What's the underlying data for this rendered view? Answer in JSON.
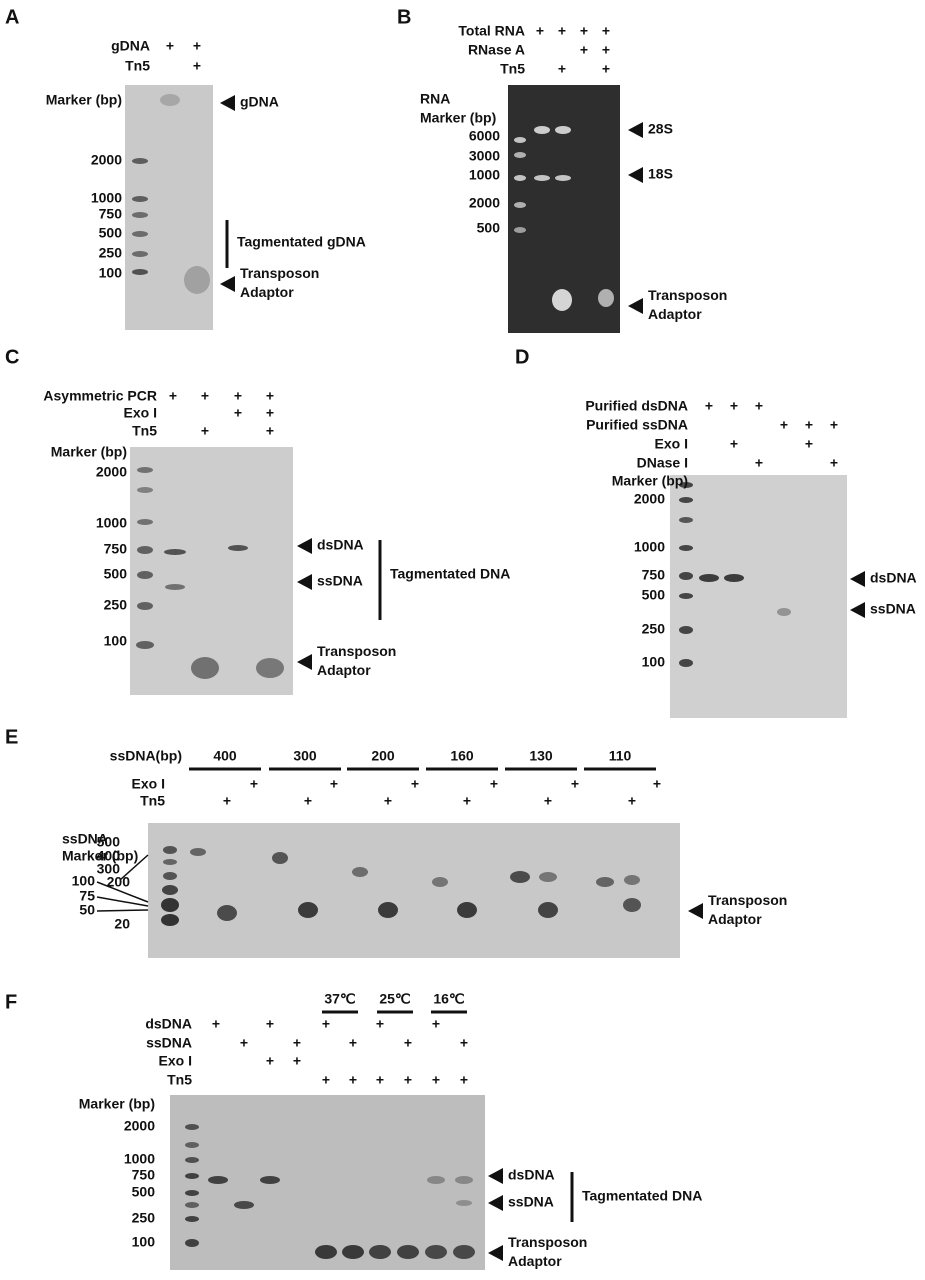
{
  "panels": [
    {
      "letter": "A",
      "rows": [
        {
          "label": "gDNA",
          "marks": [
            "+",
            "+"
          ]
        },
        {
          "label": "Tn5",
          "marks": [
            null,
            "+"
          ]
        }
      ],
      "marker_label": [
        "Marker (bp)"
      ],
      "marker_ticks": [
        "2000",
        "1000",
        "750",
        "500",
        "250",
        "100"
      ],
      "annotations": [
        {
          "text": [
            "gDNA"
          ]
        },
        {
          "text": [
            "Tagmentated gDNA"
          ]
        },
        {
          "text": [
            "Transposon",
            "Adaptor"
          ]
        }
      ]
    },
    {
      "letter": "B",
      "rows": [
        {
          "label": "Total RNA",
          "marks": [
            "+",
            "+",
            "+",
            "+"
          ]
        },
        {
          "label": "RNase A",
          "marks": [
            null,
            null,
            "+",
            "+"
          ]
        },
        {
          "label": "Tn5",
          "marks": [
            null,
            "+",
            null,
            "+"
          ]
        }
      ],
      "marker_label": [
        "RNA",
        "Marker (bp)"
      ],
      "marker_ticks": [
        "6000",
        "3000",
        "1000",
        "2000",
        "500"
      ],
      "annotations": [
        {
          "text": [
            "28S"
          ]
        },
        {
          "text": [
            "18S"
          ]
        },
        {
          "text": [
            "Transposon",
            "Adaptor"
          ]
        }
      ]
    },
    {
      "letter": "C",
      "rows": [
        {
          "label": "Asymmetric PCR",
          "marks": [
            "+",
            "+",
            "+",
            "+"
          ]
        },
        {
          "label": "Exo I",
          "marks": [
            null,
            null,
            "+",
            "+"
          ]
        },
        {
          "label": "Tn5",
          "marks": [
            null,
            "+",
            null,
            "+"
          ]
        }
      ],
      "marker_label": [
        "Marker (bp)"
      ],
      "marker_ticks": [
        "2000",
        "1000",
        "750",
        "500",
        "250",
        "100"
      ],
      "annotations": [
        {
          "text": [
            "dsDNA"
          ]
        },
        {
          "text": [
            "ssDNA"
          ]
        },
        {
          "text": [
            "Tagmentated DNA"
          ]
        },
        {
          "text": [
            "Transposon",
            "Adaptor"
          ]
        }
      ]
    },
    {
      "letter": "D",
      "rows": [
        {
          "label": "Purified dsDNA",
          "marks": [
            "+",
            "+",
            "+",
            null,
            null,
            null
          ]
        },
        {
          "label": "Purified ssDNA",
          "marks": [
            null,
            null,
            null,
            "+",
            "+",
            "+"
          ]
        },
        {
          "label": "Exo I",
          "marks": [
            null,
            "+",
            null,
            null,
            "+",
            null
          ]
        },
        {
          "label": "DNase I",
          "marks": [
            null,
            null,
            "+",
            null,
            null,
            "+"
          ]
        }
      ],
      "marker_label": [
        "Marker (bp)"
      ],
      "marker_ticks": [
        "2000",
        "1000",
        "750",
        "500",
        "250",
        "100"
      ],
      "annotations": [
        {
          "text": [
            "dsDNA"
          ]
        },
        {
          "text": [
            "ssDNA"
          ]
        }
      ]
    },
    {
      "letter": "E",
      "group_label": "ssDNA(bp)",
      "groups": [
        "400",
        "300",
        "200",
        "160",
        "130",
        "110"
      ],
      "rows": [
        {
          "label": "Exo I",
          "marks": [
            null,
            null,
            "+",
            null,
            null,
            "+",
            null,
            null,
            "+",
            null,
            null,
            "+",
            null,
            null,
            "+",
            null,
            null,
            "+"
          ]
        },
        {
          "label": "Tn5",
          "marks": [
            null,
            "+",
            null,
            null,
            "+",
            null,
            null,
            "+",
            null,
            null,
            "+",
            null,
            null,
            "+",
            null,
            null,
            "+",
            null
          ]
        }
      ],
      "marker_label": [
        "ssDNA",
        "Marker (bp)"
      ],
      "marker_ticks": [
        "500",
        "400",
        "300",
        "200",
        "100",
        "75",
        "50",
        "20"
      ],
      "annotations": [
        {
          "text": [
            "Transposon",
            "Adaptor"
          ]
        }
      ]
    },
    {
      "letter": "F",
      "groups": [
        "37℃",
        "25℃",
        "16℃"
      ],
      "rows": [
        {
          "label": "dsDNA",
          "marks": [
            "+",
            null,
            "+",
            null,
            "+",
            null,
            "+",
            null,
            "+",
            null
          ]
        },
        {
          "label": "ssDNA",
          "marks": [
            null,
            "+",
            null,
            "+",
            null,
            "+",
            null,
            "+",
            null,
            "+"
          ]
        },
        {
          "label": "Exo I",
          "marks": [
            null,
            null,
            "+",
            "+",
            null,
            null,
            null,
            null,
            null,
            null
          ]
        },
        {
          "label": "Tn5",
          "marks": [
            null,
            null,
            null,
            null,
            "+",
            "+",
            "+",
            "+",
            "+",
            "+"
          ]
        }
      ],
      "marker_label": [
        "Marker (bp)"
      ],
      "marker_ticks": [
        "2000",
        "1000",
        "750",
        "500",
        "250",
        "100"
      ],
      "annotations": [
        {
          "text": [
            "dsDNA"
          ]
        },
        {
          "text": [
            "ssDNA"
          ]
        },
        {
          "text": [
            "Tagmentated DNA"
          ]
        },
        {
          "text": [
            "Transposon",
            "Adaptor"
          ]
        }
      ]
    }
  ]
}
